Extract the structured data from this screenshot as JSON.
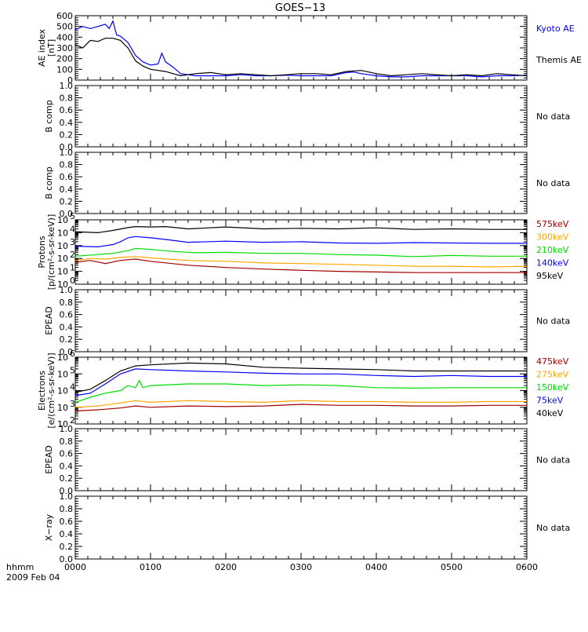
{
  "title": "GOES−13",
  "footer": {
    "line1": "hhmm",
    "line2": "2009 Feb 04"
  },
  "colors": {
    "black": "#000000",
    "blue": "#0000ff",
    "green": "#00dd00",
    "orange": "#ffa500",
    "darkred": "#a00000"
  },
  "x_ticks": [
    "0000",
    "0100",
    "0200",
    "0300",
    "0400",
    "0500",
    "0600"
  ],
  "no_data": "No data",
  "chart_data": [
    {
      "id": "ae",
      "type": "line",
      "ylabel": [
        "AE index",
        "[nT]"
      ],
      "yticks": [
        "0",
        "100",
        "200",
        "300",
        "400",
        "500",
        "600"
      ],
      "ylim": [
        0,
        600
      ],
      "scale": "linear",
      "x_unit": "hours since 0000 UT",
      "legend": [
        {
          "name": "Kyoto AE",
          "color": "blue"
        },
        {
          "name": "Themis AE",
          "color": "black"
        }
      ],
      "series": [
        {
          "name": "Kyoto AE",
          "color": "blue",
          "x": [
            0,
            0.1,
            0.2,
            0.3,
            0.4,
            0.45,
            0.5,
            0.55,
            0.6,
            0.7,
            0.8,
            0.9,
            1.0,
            1.1,
            1.15,
            1.2,
            1.3,
            1.4,
            1.6,
            1.8,
            2.0,
            2.2,
            2.4,
            2.6,
            2.8,
            3.0,
            3.2,
            3.4,
            3.6,
            3.7,
            3.8,
            4.0,
            4.2,
            4.4,
            4.6,
            4.8,
            5.0,
            5.2,
            5.4,
            5.6,
            5.8,
            6.0
          ],
          "y": [
            470,
            500,
            480,
            500,
            520,
            480,
            550,
            420,
            410,
            350,
            230,
            170,
            140,
            150,
            250,
            170,
            120,
            60,
            40,
            40,
            40,
            50,
            40,
            40,
            45,
            40,
            40,
            40,
            70,
            75,
            60,
            40,
            30,
            30,
            40,
            40,
            40,
            40,
            30,
            40,
            40,
            45
          ]
        },
        {
          "name": "Themis AE",
          "color": "black",
          "x": [
            0,
            0.1,
            0.2,
            0.3,
            0.4,
            0.5,
            0.6,
            0.7,
            0.8,
            0.9,
            1.0,
            1.1,
            1.2,
            1.3,
            1.4,
            1.6,
            1.8,
            2.0,
            2.2,
            2.4,
            2.6,
            2.8,
            3.0,
            3.2,
            3.4,
            3.6,
            3.8,
            4.0,
            4.2,
            4.4,
            4.6,
            4.8,
            5.0,
            5.2,
            5.4,
            5.6,
            5.8,
            6.0
          ],
          "y": [
            330,
            300,
            370,
            360,
            390,
            390,
            370,
            300,
            180,
            130,
            100,
            90,
            80,
            60,
            40,
            60,
            70,
            50,
            60,
            50,
            40,
            50,
            60,
            60,
            50,
            80,
            90,
            60,
            40,
            50,
            60,
            50,
            40,
            50,
            40,
            60,
            50,
            40
          ]
        }
      ]
    },
    {
      "id": "b1",
      "type": "line",
      "ylabel": [
        "B comp"
      ],
      "yticks": [
        "0.0",
        "0.2",
        "0.4",
        "0.6",
        "0.8",
        "1.0"
      ],
      "ylim": [
        0,
        1
      ],
      "scale": "linear",
      "no_data": true
    },
    {
      "id": "b2",
      "type": "line",
      "ylabel": [
        "B comp"
      ],
      "yticks": [
        "0.0",
        "0.2",
        "0.4",
        "0.6",
        "0.8",
        "1.0"
      ],
      "ylim": [
        0,
        1
      ],
      "scale": "linear",
      "no_data": true
    },
    {
      "id": "protons",
      "type": "line",
      "ylabel": [
        "Protons",
        "[p/(cm²-s-sr-keV)]"
      ],
      "yticks_exp": [
        0,
        1,
        2,
        3,
        4,
        5
      ],
      "ylim": [
        1,
        100000
      ],
      "scale": "log",
      "x_unit": "hours since 0000 UT",
      "legend": [
        {
          "name": "575keV",
          "color": "darkred"
        },
        {
          "name": "300keV",
          "color": "orange"
        },
        {
          "name": "210keV",
          "color": "green"
        },
        {
          "name": "140keV",
          "color": "blue"
        },
        {
          "name": "95keV",
          "color": "black"
        }
      ],
      "series": [
        {
          "name": "95keV",
          "color": "black",
          "x": [
            0,
            0.3,
            0.5,
            0.7,
            0.8,
            1.0,
            1.2,
            1.5,
            2.0,
            2.5,
            3.0,
            3.5,
            4.0,
            4.5,
            5.0,
            5.5,
            6.0
          ],
          "y": [
            12000,
            10000,
            15000,
            25000,
            30000,
            28000,
            30000,
            20000,
            28000,
            20000,
            22000,
            20000,
            24000,
            18000,
            20000,
            18000,
            18000
          ]
        },
        {
          "name": "140keV",
          "color": "blue",
          "x": [
            0,
            0.3,
            0.5,
            0.6,
            0.7,
            0.8,
            1.0,
            1.2,
            1.5,
            2.0,
            2.5,
            3.0,
            3.5,
            4.0,
            4.5,
            5.0,
            5.5,
            6.0
          ],
          "y": [
            900,
            800,
            1200,
            2000,
            4000,
            5000,
            4000,
            3000,
            1800,
            2200,
            1800,
            2000,
            1600,
            1500,
            1700,
            1600,
            1500,
            1500
          ]
        },
        {
          "name": "210keV",
          "color": "green",
          "x": [
            0,
            0.3,
            0.5,
            0.7,
            0.8,
            1.0,
            1.3,
            1.6,
            2.0,
            2.5,
            3.0,
            3.5,
            4.0,
            4.5,
            5.0,
            5.5,
            6.0
          ],
          "y": [
            150,
            200,
            250,
            400,
            600,
            500,
            350,
            280,
            300,
            250,
            250,
            200,
            180,
            140,
            170,
            150,
            150
          ]
        },
        {
          "name": "300keV",
          "color": "orange",
          "x": [
            0,
            0.2,
            0.4,
            0.6,
            0.8,
            1.0,
            1.5,
            2.0,
            2.5,
            3.0,
            3.5,
            4.0,
            4.5,
            5.0,
            5.5,
            6.0
          ],
          "y": [
            70,
            100,
            90,
            120,
            140,
            110,
            70,
            60,
            45,
            40,
            35,
            30,
            25,
            25,
            22,
            25
          ]
        },
        {
          "name": "575keV",
          "color": "darkred",
          "x": [
            0,
            0.2,
            0.4,
            0.6,
            0.8,
            1.0,
            1.5,
            2.0,
            2.5,
            3.0,
            3.5,
            4.0,
            4.5,
            5.0,
            5.5,
            6.0
          ],
          "y": [
            50,
            70,
            40,
            70,
            90,
            60,
            30,
            20,
            15,
            12,
            10,
            9,
            8,
            8,
            8,
            8
          ]
        }
      ]
    },
    {
      "id": "epead1",
      "type": "line",
      "ylabel": [
        "EPEAD"
      ],
      "yticks": [
        "0.0",
        "0.2",
        "0.4",
        "0.6",
        "0.8",
        "1.0"
      ],
      "ylim": [
        0,
        1
      ],
      "scale": "linear",
      "no_data": true
    },
    {
      "id": "electrons",
      "type": "line",
      "ylabel": [
        "Electrons",
        "[e/(cm²-s-sr-keV)]"
      ],
      "yticks_exp": [
        2,
        3,
        4,
        5,
        6
      ],
      "ylim": [
        100,
        1000000
      ],
      "scale": "log",
      "x_unit": "hours since 0000 UT",
      "legend": [
        {
          "name": "475keV",
          "color": "darkred"
        },
        {
          "name": "275keV",
          "color": "orange"
        },
        {
          "name": "150keV",
          "color": "green"
        },
        {
          "name": "75keV",
          "color": "blue"
        },
        {
          "name": "40keV",
          "color": "black"
        }
      ],
      "series": [
        {
          "name": "40keV",
          "color": "black",
          "x": [
            0,
            0.2,
            0.4,
            0.6,
            0.8,
            1.0,
            1.5,
            2.0,
            2.5,
            3.0,
            3.5,
            4.0,
            4.5,
            5.0,
            5.5,
            6.0
          ],
          "y": [
            8000,
            12000,
            40000,
            150000,
            300000,
            350000,
            450000,
            400000,
            250000,
            220000,
            200000,
            180000,
            150000,
            150000,
            150000,
            150000
          ]
        },
        {
          "name": "75keV",
          "color": "blue",
          "x": [
            0,
            0.2,
            0.4,
            0.6,
            0.8,
            1.0,
            1.5,
            2.0,
            2.5,
            3.0,
            3.5,
            4.0,
            4.5,
            5.0,
            5.5,
            6.0
          ],
          "y": [
            5000,
            7000,
            25000,
            100000,
            200000,
            180000,
            150000,
            130000,
            110000,
            100000,
            100000,
            80000,
            70000,
            80000,
            70000,
            70000
          ]
        },
        {
          "name": "150keV",
          "color": "green",
          "x": [
            0,
            0.2,
            0.4,
            0.6,
            0.7,
            0.8,
            0.85,
            0.9,
            1.0,
            1.5,
            2.0,
            2.5,
            3.0,
            3.5,
            4.0,
            4.5,
            5.0,
            5.5,
            6.0
          ],
          "y": [
            2000,
            4000,
            7000,
            10000,
            20000,
            15000,
            40000,
            15000,
            20000,
            25000,
            25000,
            20000,
            22000,
            20000,
            15000,
            14000,
            15000,
            15000,
            15000
          ]
        },
        {
          "name": "275keV",
          "color": "orange",
          "x": [
            0,
            0.3,
            0.6,
            0.8,
            1.0,
            1.5,
            2.0,
            2.5,
            3.0,
            3.5,
            4.0,
            4.5,
            5.0,
            5.5,
            6.0
          ],
          "y": [
            1000,
            1200,
            1800,
            2500,
            2000,
            2500,
            2200,
            2000,
            2500,
            2200,
            2200,
            2000,
            2000,
            2200,
            2200
          ]
        },
        {
          "name": "475keV",
          "color": "darkred",
          "x": [
            0,
            0.3,
            0.6,
            0.8,
            1.0,
            1.5,
            2.0,
            2.5,
            3.0,
            3.5,
            4.0,
            4.5,
            5.0,
            5.5,
            6.0
          ],
          "y": [
            600,
            700,
            900,
            1200,
            1000,
            1200,
            1100,
            1200,
            1500,
            1300,
            1300,
            1200,
            1200,
            1300,
            1300
          ]
        }
      ]
    },
    {
      "id": "epead2",
      "type": "line",
      "ylabel": [
        "EPEAD"
      ],
      "yticks": [
        "0.0",
        "0.2",
        "0.4",
        "0.6",
        "0.8",
        "1.0"
      ],
      "ylim": [
        0,
        1
      ],
      "scale": "linear",
      "no_data": true
    },
    {
      "id": "xray",
      "type": "line",
      "ylabel": [
        "X−ray"
      ],
      "yticks": [
        "0.0",
        "0.2",
        "0.4",
        "0.6",
        "0.8",
        "1.0"
      ],
      "ylim": [
        0,
        1
      ],
      "scale": "linear",
      "no_data": true
    }
  ]
}
